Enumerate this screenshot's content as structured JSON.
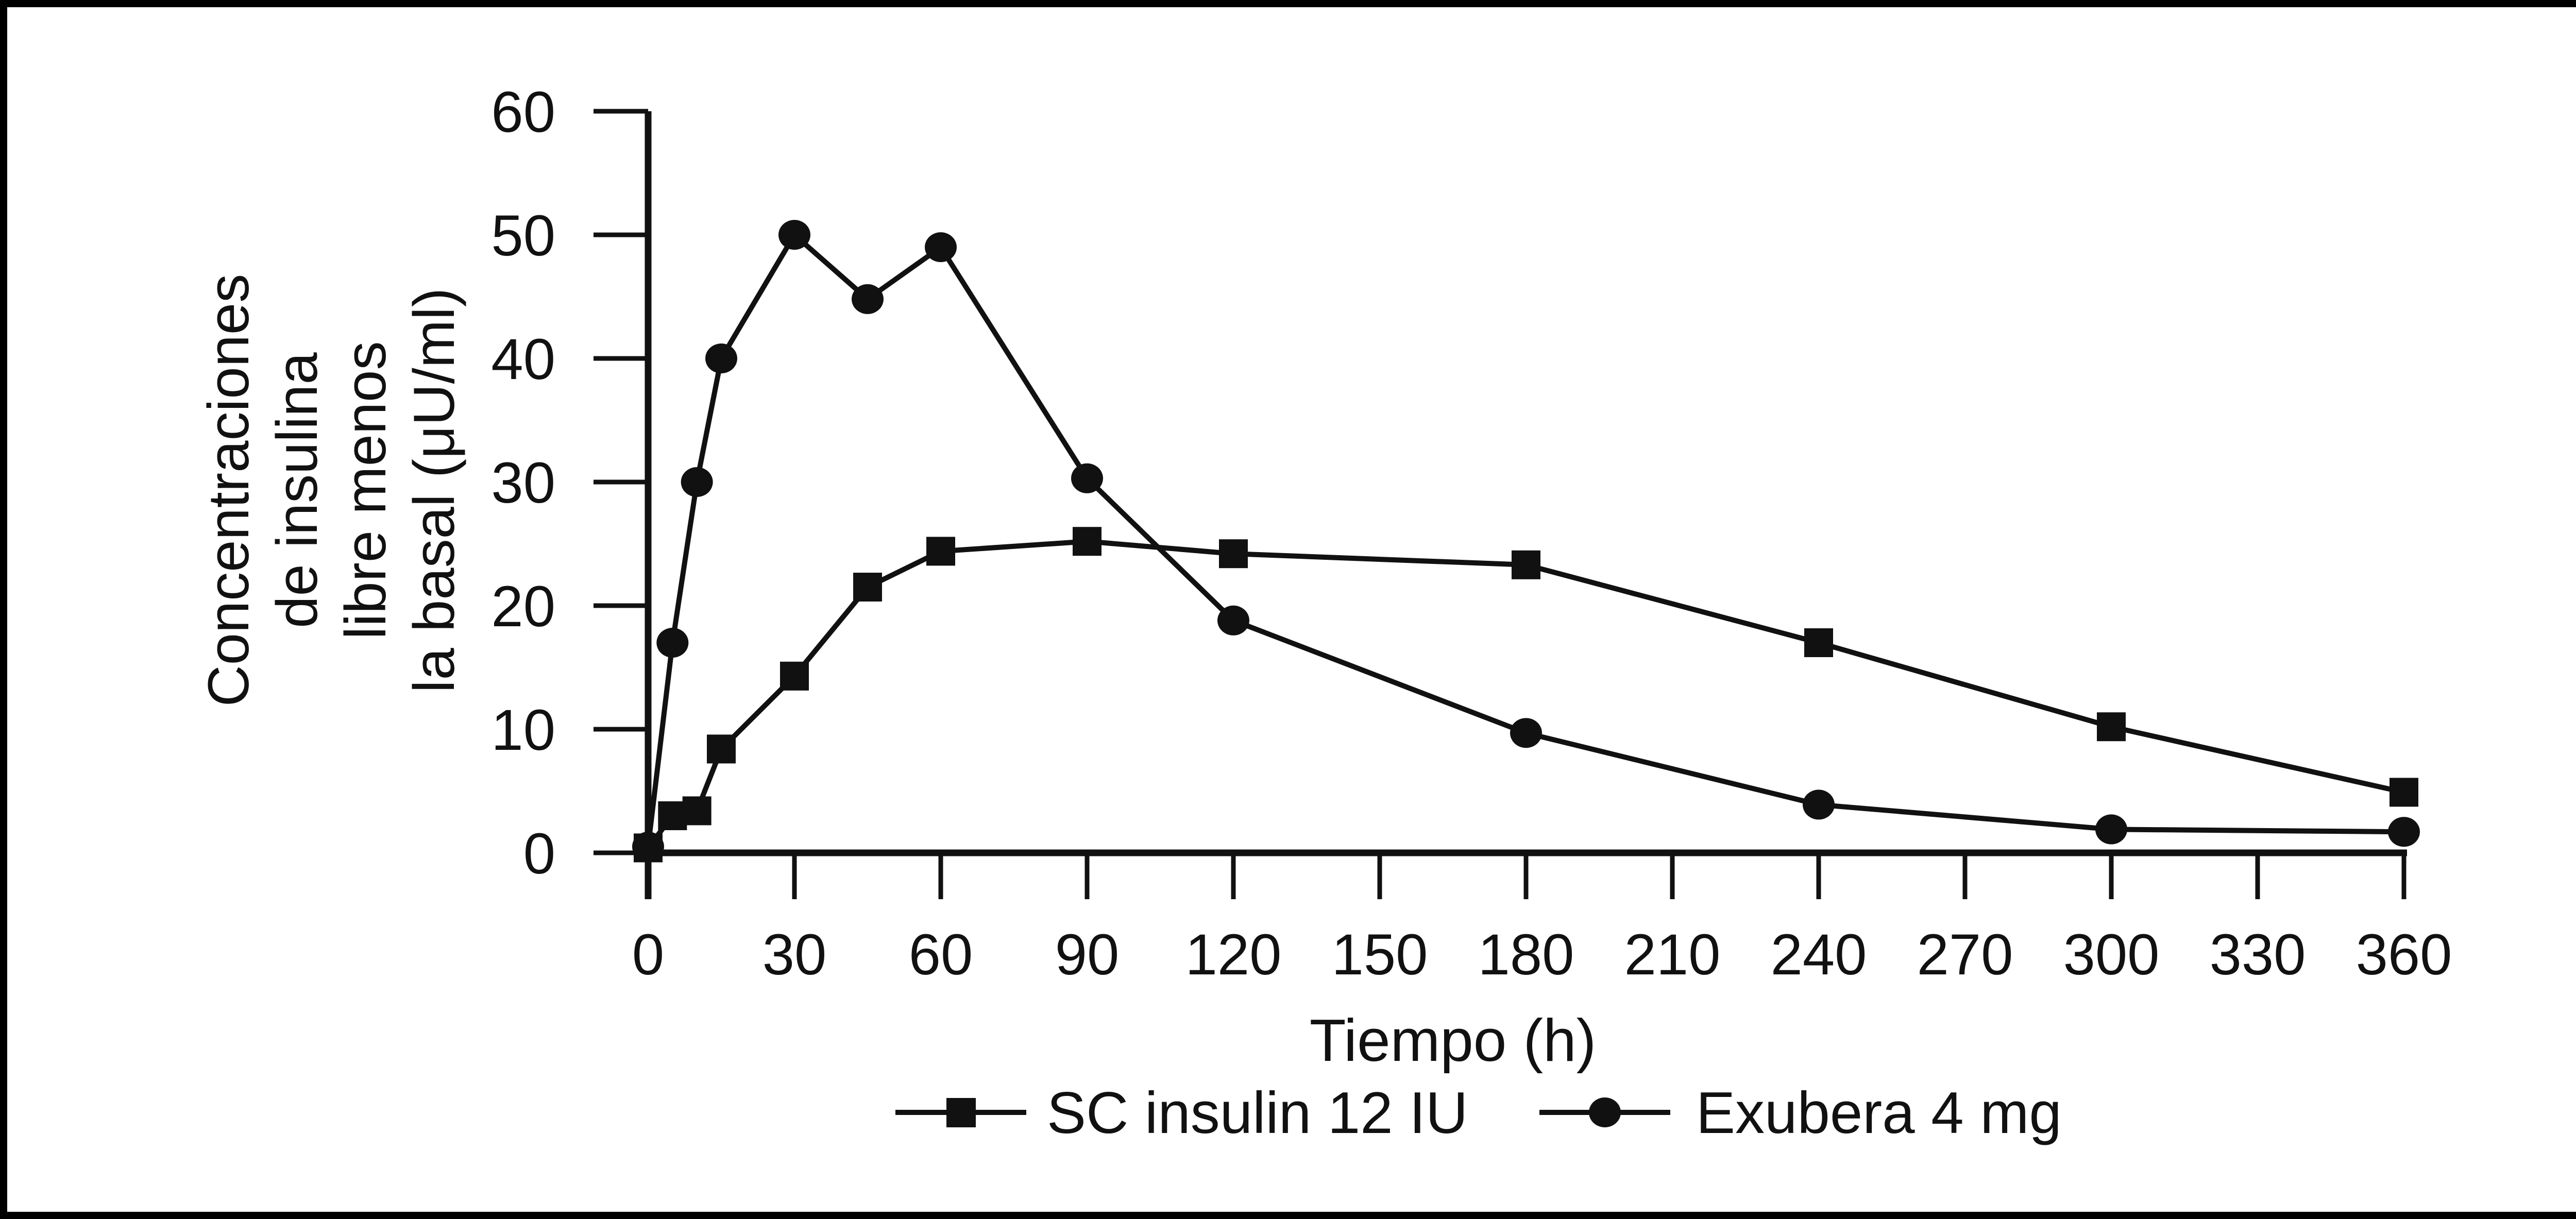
{
  "figure": {
    "background": "#ffffff",
    "border_color": "#000000",
    "ink_color": "#111111"
  },
  "chart_data": {
    "type": "line",
    "title": "",
    "xlabel": "Tiempo (h)",
    "ylabel": "Concentraciones de insulina libre menos la basal (μU/ml)",
    "ylabel_lines": [
      "Concentraciones",
      "de insulina",
      "libre menos",
      "la basal (μU/ml)"
    ],
    "xlim": [
      0,
      360
    ],
    "ylim": [
      0,
      60
    ],
    "x_ticks": [
      0,
      30,
      60,
      90,
      120,
      150,
      180,
      210,
      240,
      270,
      300,
      330,
      360
    ],
    "y_ticks": [
      0,
      10,
      20,
      30,
      40,
      50,
      60
    ],
    "grid": false,
    "legend_position": "bottom-center",
    "line_color": "#111111",
    "series": [
      {
        "name": "SC insulin 12 IU",
        "marker": "square",
        "x": [
          0,
          5,
          10,
          15,
          30,
          45,
          60,
          90,
          120,
          180,
          240,
          300,
          360
        ],
        "y": [
          0.4,
          3.0,
          3.4,
          8.4,
          14.3,
          21.5,
          24.4,
          25.2,
          24.2,
          23.3,
          17.0,
          10.2,
          4.9
        ]
      },
      {
        "name": "Exubera 4 mg",
        "marker": "circle",
        "x": [
          0,
          5,
          10,
          15,
          30,
          45,
          60,
          90,
          120,
          180,
          240,
          300,
          360
        ],
        "y": [
          0.5,
          17.0,
          30.0,
          40.0,
          50.0,
          44.8,
          49.0,
          30.3,
          18.8,
          9.7,
          3.9,
          1.9,
          1.7
        ]
      }
    ]
  }
}
